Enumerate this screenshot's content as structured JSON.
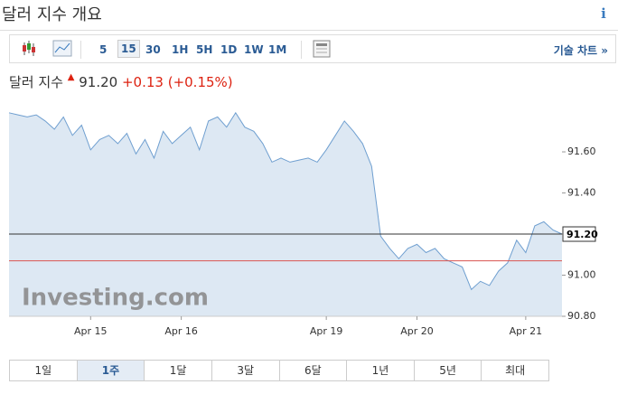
{
  "header": {
    "title": "달러 지수 개요",
    "info": "i"
  },
  "toolbar": {
    "intervals": [
      "5",
      "15",
      "30",
      "1H",
      "5H",
      "1D",
      "1W",
      "1M"
    ],
    "selected_interval": "15",
    "technical_chart": "기술 차트 »"
  },
  "quote": {
    "name": "달러 지수",
    "price": "91.20",
    "change": "+0.13",
    "change_pct": "(+0.15%)"
  },
  "chart_data": {
    "type": "line",
    "watermark": "Investing.com",
    "categories": [
      null,
      null,
      null,
      null,
      null,
      null,
      null,
      null,
      null,
      "Apr 15",
      null,
      null,
      null,
      null,
      null,
      null,
      null,
      null,
      null,
      "Apr 16",
      null,
      null,
      null,
      null,
      null,
      null,
      null,
      null,
      null,
      null,
      null,
      null,
      null,
      null,
      null,
      "Apr 19",
      null,
      null,
      null,
      null,
      null,
      null,
      null,
      null,
      null,
      "Apr 20",
      null,
      null,
      null,
      null,
      null,
      null,
      null,
      null,
      null,
      null,
      null,
      "Apr 21",
      null,
      null,
      null,
      null
    ],
    "series": [
      {
        "color": "#6f9fd0",
        "fill": "#dde8f3",
        "values": [
          91.79,
          91.78,
          91.77,
          91.78,
          91.75,
          91.71,
          91.77,
          91.68,
          91.73,
          91.61,
          91.66,
          91.68,
          91.64,
          91.69,
          91.59,
          91.66,
          91.57,
          91.7,
          91.64,
          91.68,
          91.72,
          91.61,
          91.75,
          91.77,
          91.72,
          91.79,
          91.72,
          91.7,
          91.64,
          91.55,
          91.57,
          91.55,
          91.56,
          91.57,
          91.55,
          91.61,
          91.68,
          91.75,
          91.7,
          91.64,
          91.53,
          91.19,
          91.13,
          91.08,
          91.13,
          91.15,
          91.11,
          91.13,
          91.08,
          91.06,
          91.04,
          90.93,
          90.97,
          90.95,
          91.02,
          91.06,
          91.17,
          91.11,
          91.24,
          91.26,
          91.22,
          91.2
        ]
      }
    ],
    "ylim": [
      90.8,
      91.82
    ],
    "yticks": [
      {
        "value": 90.8,
        "label": "90.80"
      },
      {
        "value": 91.0,
        "label": "91.00"
      },
      {
        "value": 91.2,
        "label": "91.20"
      },
      {
        "value": 91.4,
        "label": "91.40"
      },
      {
        "value": 91.6,
        "label": "91.60"
      }
    ],
    "current_line": {
      "value": 91.2,
      "label": "91.20",
      "color": "#333333"
    },
    "prev_close_line": {
      "value": 91.07,
      "color": "#d9534f"
    }
  },
  "ranges": {
    "items": [
      "1일",
      "1주",
      "1달",
      "3달",
      "6달",
      "1년",
      "5년",
      "최대"
    ],
    "selected": "1주"
  }
}
